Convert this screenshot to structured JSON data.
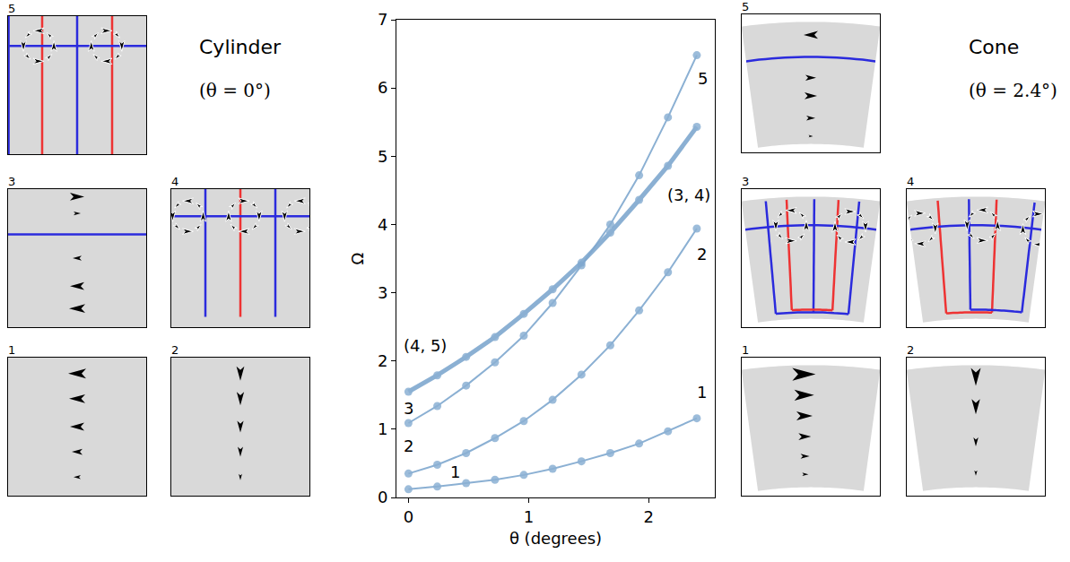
{
  "chart_data": {
    "type": "line",
    "x_label": "θ (degrees)",
    "y_label": "Ω",
    "x": [
      0,
      0.24,
      0.48,
      0.72,
      0.96,
      1.2,
      1.44,
      1.68,
      1.92,
      2.16,
      2.4
    ],
    "series": [
      {
        "color": "#7fa8cf",
        "marker": "circle",
        "values": [
          0.12,
          0.16,
          0.21,
          0.26,
          0.33,
          0.42,
          0.53,
          0.65,
          0.79,
          0.97,
          1.16
        ]
      },
      {
        "color": "#7fa8cf",
        "marker": "circle",
        "values": [
          0.35,
          0.48,
          0.65,
          0.87,
          1.12,
          1.43,
          1.8,
          2.23,
          2.74,
          3.3,
          3.94
        ]
      },
      {
        "color": "#7fa8cf",
        "marker": "circle",
        "values": [
          1.09,
          1.34,
          1.64,
          1.98,
          2.37,
          2.85,
          3.4,
          4.0,
          4.72,
          5.57,
          6.48
        ]
      },
      {
        "color": "#7fa8cf",
        "marker": "circle",
        "line_style": "thick",
        "values": [
          1.55,
          1.79,
          2.06,
          2.35,
          2.69,
          3.05,
          3.44,
          3.88,
          4.36,
          4.86,
          5.43
        ]
      }
    ],
    "annotations": [
      {
        "text": "5",
        "x": 2.45,
        "y": 6.14
      },
      {
        "text": "(3, 4)",
        "x": 2.33,
        "y": 4.43
      },
      {
        "text": "2",
        "x": 2.44,
        "y": 3.57
      },
      {
        "text": "1",
        "x": 2.44,
        "y": 1.54
      },
      {
        "text": "(4, 5)",
        "x": 0.14,
        "y": 2.23
      },
      {
        "text": "3",
        "x": 0.0,
        "y": 1.31
      },
      {
        "text": "2",
        "x": 0.0,
        "y": 0.76
      },
      {
        "text": "1",
        "x": 0.39,
        "y": 0.37
      }
    ],
    "xlim": [
      -0.1,
      2.55
    ],
    "xticks": [
      0,
      1,
      2
    ],
    "ylim": [
      0,
      7
    ],
    "yticks": [
      0,
      1,
      2,
      3,
      4,
      5,
      6,
      7
    ],
    "grid": false
  },
  "panels": {
    "cylinder": {
      "title": "Cylinder",
      "subtitle": "(θ = 0°)",
      "modes": [
        "5",
        "3",
        "4",
        "1",
        "2"
      ]
    },
    "cone": {
      "title": "Cone",
      "subtitle": "(θ = 2.4°)",
      "modes": [
        "5",
        "3",
        "4",
        "1",
        "2"
      ]
    }
  }
}
